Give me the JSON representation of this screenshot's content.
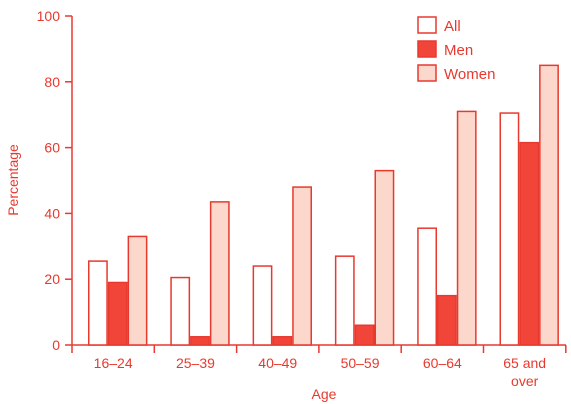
{
  "chart_data": {
    "type": "bar",
    "xlabel": "Age",
    "ylabel": "Percentage",
    "ylim": [
      0,
      100
    ],
    "yticks": [
      0,
      20,
      40,
      60,
      80,
      100
    ],
    "categories": [
      {
        "lines": [
          "16–24"
        ]
      },
      {
        "lines": [
          "25–39"
        ]
      },
      {
        "lines": [
          "40–49"
        ]
      },
      {
        "lines": [
          "50–59"
        ]
      },
      {
        "lines": [
          "60–64"
        ]
      },
      {
        "lines": [
          "65 and",
          "over"
        ]
      }
    ],
    "series": [
      {
        "name": "All",
        "values": [
          25.5,
          20.5,
          24,
          27,
          35.5,
          70.5
        ]
      },
      {
        "name": "Men",
        "values": [
          19,
          2.5,
          2.5,
          6,
          15,
          61.5
        ]
      },
      {
        "name": "Women",
        "values": [
          33,
          43.5,
          48,
          53,
          71,
          85
        ]
      }
    ],
    "grid": false,
    "legend_position": "top-right"
  },
  "colors": {
    "axis": "#e8392e",
    "series": [
      {
        "fill": "#ffffff",
        "stroke": "#e8392e"
      },
      {
        "fill": "#f2453a",
        "stroke": "#e8392e"
      },
      {
        "fill": "#fcd8cc",
        "stroke": "#e8392e"
      }
    ]
  }
}
